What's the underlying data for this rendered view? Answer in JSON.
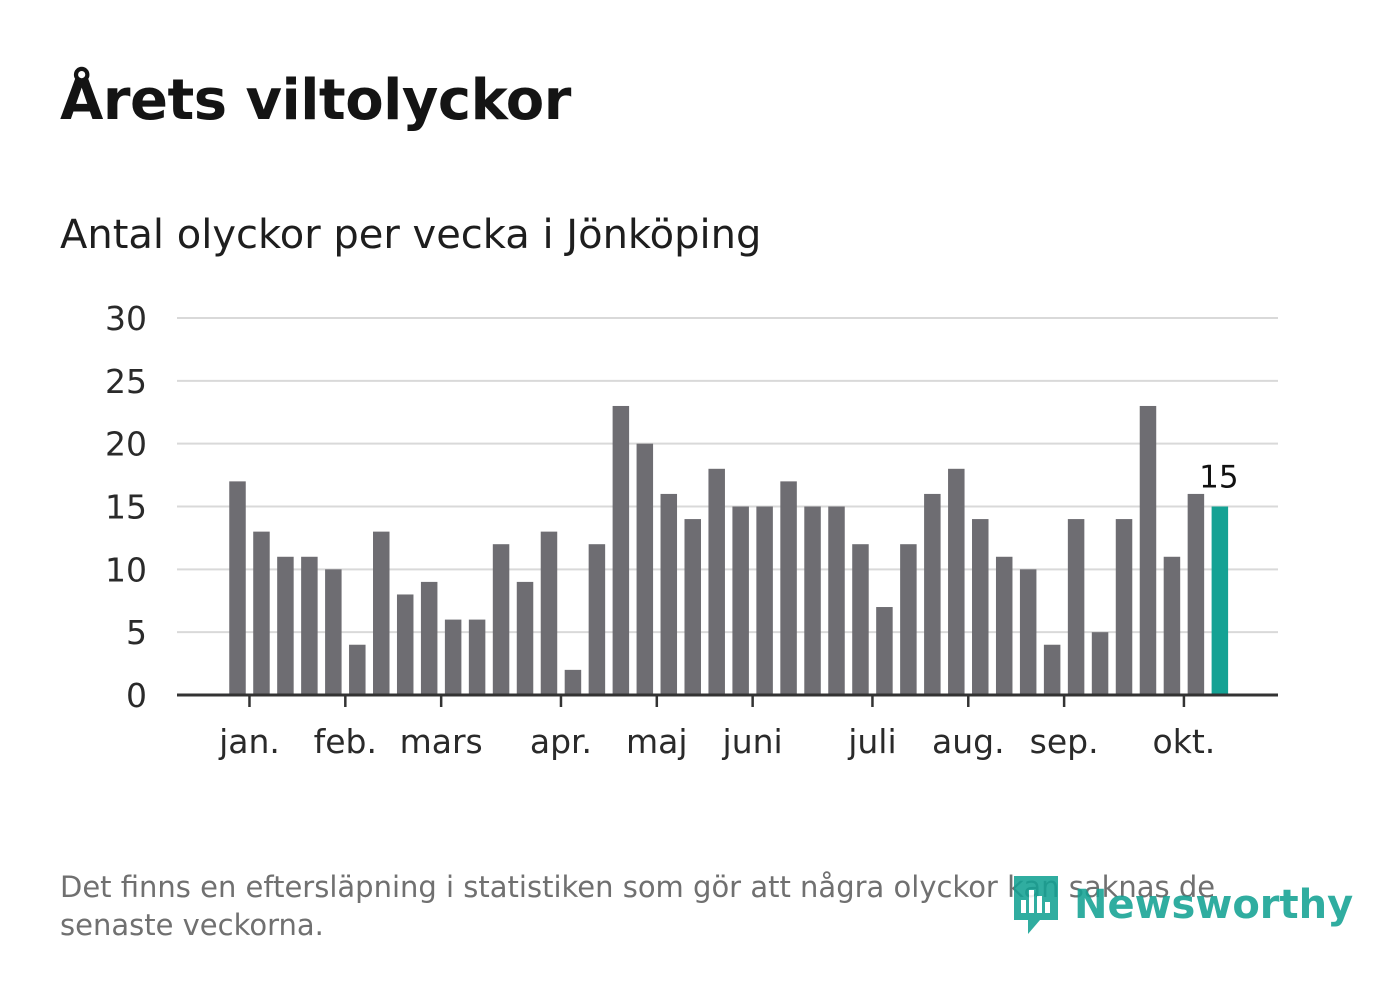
{
  "header": {
    "title": "Årets viltolyckor",
    "subtitle": "Antal olyckor per vecka i Jönköping"
  },
  "footnote": "Det finns en eftersläpning i statistiken som gör att några olyckor kan saknas de senaste veckorna.",
  "brand": {
    "name": "Newsworthy",
    "icon": "newsworthy-logo-icon",
    "color": "#14a294"
  },
  "colors": {
    "bar": "#6e6d72",
    "highlight": "#14a294",
    "grid": "#d9d9d9",
    "axis": "#333333",
    "tick_text": "#2a2a2a"
  },
  "chart_data": {
    "type": "bar",
    "title": "Antal olyckor per vecka i Jönköping",
    "xlabel": "",
    "ylabel": "",
    "ylim": [
      0,
      30
    ],
    "yticks": [
      0,
      5,
      10,
      15,
      20,
      25,
      30
    ],
    "grid": true,
    "series": [
      {
        "name": "Antal olyckor",
        "values": [
          17,
          13,
          11,
          11,
          10,
          4,
          13,
          8,
          9,
          6,
          6,
          12,
          9,
          13,
          2,
          12,
          23,
          20,
          16,
          14,
          18,
          15,
          15,
          17,
          15,
          15,
          12,
          7,
          12,
          16,
          18,
          14,
          11,
          10,
          4,
          14,
          5,
          14,
          23,
          11,
          16,
          15
        ]
      }
    ],
    "x_weeks": [
      1,
      2,
      3,
      4,
      5,
      6,
      7,
      8,
      9,
      10,
      11,
      12,
      13,
      14,
      15,
      16,
      17,
      18,
      19,
      20,
      21,
      22,
      23,
      24,
      25,
      26,
      27,
      28,
      29,
      30,
      31,
      32,
      33,
      34,
      35,
      36,
      37,
      38,
      39,
      40,
      41,
      42
    ],
    "highlight_index": 41,
    "highlight_label": "15",
    "month_ticks": [
      {
        "label": "jan.",
        "week": 1.5
      },
      {
        "label": "feb.",
        "week": 5.5
      },
      {
        "label": "mars",
        "week": 9.5
      },
      {
        "label": "apr.",
        "week": 14.5
      },
      {
        "label": "maj",
        "week": 18.5
      },
      {
        "label": "juni",
        "week": 22.5
      },
      {
        "label": "juli",
        "week": 27.5
      },
      {
        "label": "aug.",
        "week": 31.5
      },
      {
        "label": "sep.",
        "week": 35.5
      },
      {
        "label": "okt.",
        "week": 40.5
      }
    ]
  }
}
